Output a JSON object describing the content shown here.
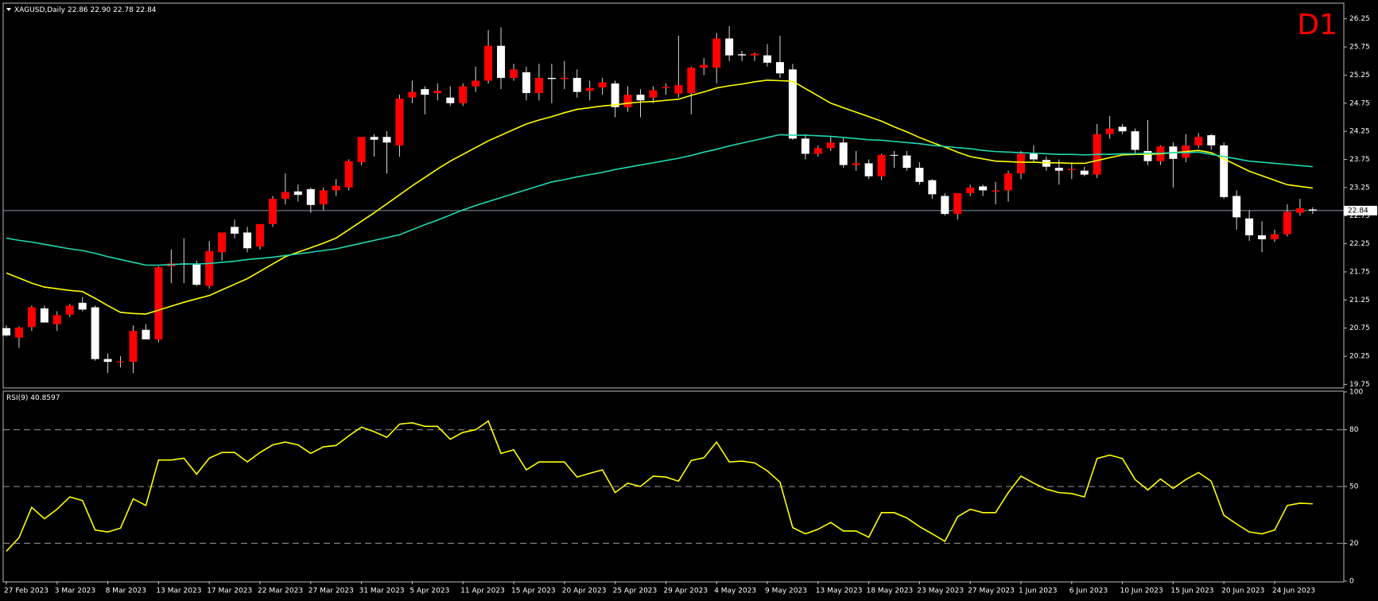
{
  "chart_data": [
    {
      "type": "candlestick",
      "title": "XAGUSD,Daily",
      "subtitle": "22.86 22.90 22.78 22.84",
      "annotation": "D1",
      "categories": [
        "27 Feb 2023",
        null,
        null,
        null,
        "3 Mar 2023",
        null,
        null,
        null,
        "8 Mar 2023",
        null,
        null,
        null,
        "13 Mar 2023",
        null,
        null,
        null,
        "17 Mar 2023",
        null,
        null,
        null,
        "22 Mar 2023",
        null,
        null,
        null,
        "27 Mar 2023",
        null,
        null,
        null,
        "31 Mar 2023",
        null,
        null,
        null,
        "5 Apr 2023",
        null,
        null,
        null,
        "11 Apr 2023",
        null,
        null,
        null,
        "15 Apr 2023",
        null,
        null,
        null,
        "20 Apr 2023",
        null,
        null,
        null,
        "25 Apr 2023",
        null,
        null,
        null,
        "29 Apr 2023",
        null,
        null,
        null,
        "4 May 2023",
        null,
        null,
        null,
        "9 May 2023",
        null,
        null,
        null,
        "13 May 2023",
        null,
        null,
        null,
        "18 May 2023",
        null,
        null,
        null,
        "23 May 2023",
        null,
        null,
        null,
        "27 May 2023",
        null,
        null,
        null,
        "1 Jun 2023",
        null,
        null,
        null,
        "6 Jun 2023",
        null,
        null,
        null,
        "10 Jun 2023",
        null,
        null,
        null,
        "15 Jun 2023",
        null,
        null,
        null,
        "20 Jun 2023",
        null,
        null,
        null,
        "24 Jun 2023",
        null,
        null,
        null
      ],
      "open": [
        20.75,
        20.58,
        20.77,
        21.1,
        20.82,
        20.99,
        21.2,
        21.12,
        20.2,
        20.15,
        20.15,
        20.72,
        20.55,
        21.85,
        21.9,
        21.88,
        21.5,
        22.1,
        22.55,
        22.45,
        22.2,
        22.6,
        23.05,
        23.18,
        23.22,
        22.95,
        23.2,
        23.25,
        23.7,
        24.15,
        24.15,
        24.0,
        24.85,
        25.0,
        24.93,
        24.85,
        24.75,
        25.05,
        25.15,
        25.77,
        25.2,
        25.3,
        24.93,
        25.2,
        25.18,
        25.2,
        24.97,
        25.03,
        25.1,
        24.68,
        24.9,
        24.85,
        25.02,
        24.92,
        24.93,
        25.38,
        25.38,
        25.9,
        25.62,
        25.6,
        25.6,
        25.48,
        25.35,
        24.12,
        23.85,
        23.95,
        24.05,
        23.65,
        23.68,
        23.45,
        23.83,
        23.82,
        23.6,
        23.38,
        23.1,
        22.78,
        23.15,
        23.27,
        23.18,
        23.2,
        23.5,
        23.85,
        23.74,
        23.6,
        23.56,
        23.55,
        23.48,
        24.2,
        24.33,
        24.25,
        23.9,
        23.72,
        23.98,
        23.78,
        24.0,
        24.18,
        24.0,
        23.1,
        22.7,
        22.4,
        22.33,
        22.42,
        22.8,
        22.86
      ],
      "high": [
        20.8,
        20.78,
        21.15,
        21.15,
        21.05,
        21.18,
        21.3,
        21.15,
        20.3,
        20.25,
        20.8,
        20.82,
        21.85,
        22.15,
        22.35,
        21.95,
        22.3,
        22.45,
        22.68,
        22.55,
        22.6,
        23.1,
        23.5,
        23.3,
        23.25,
        23.25,
        23.4,
        23.75,
        24.15,
        24.2,
        24.25,
        24.9,
        25.15,
        25.05,
        25.1,
        25.05,
        25.1,
        25.4,
        26.05,
        26.1,
        25.45,
        25.4,
        25.45,
        25.45,
        25.5,
        25.35,
        25.15,
        25.2,
        25.15,
        25.05,
        25.0,
        25.05,
        25.1,
        25.95,
        25.4,
        25.55,
        26.0,
        26.12,
        25.68,
        25.65,
        25.8,
        25.95,
        25.45,
        24.2,
        24.0,
        24.15,
        24.15,
        23.9,
        23.75,
        23.85,
        23.9,
        23.9,
        23.7,
        23.4,
        23.15,
        23.15,
        23.3,
        23.3,
        23.35,
        23.55,
        23.9,
        24.0,
        23.8,
        23.75,
        23.7,
        23.62,
        24.38,
        24.52,
        24.38,
        24.3,
        24.45,
        24.0,
        24.05,
        24.2,
        24.22,
        24.2,
        24.05,
        23.2,
        22.85,
        22.65,
        22.5,
        22.95,
        23.05,
        22.9
      ],
      "low": [
        20.6,
        20.4,
        20.7,
        20.9,
        20.7,
        20.95,
        21.05,
        20.17,
        19.95,
        20.05,
        19.95,
        20.55,
        20.5,
        21.55,
        21.55,
        21.5,
        21.45,
        21.95,
        22.35,
        22.1,
        22.15,
        22.55,
        22.95,
        23.0,
        22.8,
        22.85,
        23.1,
        23.2,
        23.65,
        23.8,
        23.5,
        23.8,
        24.75,
        24.55,
        24.8,
        24.7,
        24.7,
        24.95,
        25.1,
        25.0,
        25.15,
        24.8,
        24.8,
        24.75,
        25.0,
        24.85,
        24.8,
        24.9,
        24.5,
        24.6,
        24.5,
        24.75,
        24.9,
        24.85,
        24.55,
        25.25,
        25.1,
        25.5,
        25.5,
        25.5,
        25.4,
        25.2,
        24.1,
        23.75,
        23.8,
        23.9,
        23.6,
        23.55,
        23.4,
        23.38,
        23.6,
        23.55,
        23.3,
        23.05,
        22.75,
        22.68,
        23.1,
        23.1,
        22.95,
        23.0,
        23.4,
        23.7,
        23.55,
        23.3,
        23.4,
        23.45,
        23.42,
        24.12,
        24.2,
        23.85,
        23.65,
        23.65,
        23.25,
        23.7,
        23.95,
        23.92,
        23.05,
        22.5,
        22.3,
        22.1,
        22.28,
        22.38,
        22.75,
        22.78
      ],
      "close": [
        20.62,
        20.76,
        21.12,
        20.85,
        20.98,
        21.15,
        21.08,
        20.2,
        20.15,
        20.16,
        20.7,
        20.55,
        21.83,
        21.9,
        21.88,
        21.52,
        22.12,
        22.45,
        22.43,
        22.17,
        22.6,
        23.05,
        23.17,
        23.12,
        22.94,
        23.2,
        23.28,
        23.72,
        24.15,
        24.1,
        24.05,
        24.83,
        24.95,
        24.9,
        24.97,
        24.75,
        25.05,
        25.15,
        25.77,
        25.2,
        25.35,
        24.93,
        25.2,
        25.18,
        25.2,
        24.95,
        25.02,
        25.12,
        24.68,
        24.9,
        24.8,
        24.98,
        25.04,
        25.07,
        25.38,
        25.43,
        25.9,
        25.6,
        25.6,
        25.63,
        25.47,
        25.28,
        24.12,
        23.85,
        23.95,
        24.05,
        23.65,
        23.68,
        23.45,
        23.83,
        23.82,
        23.6,
        23.35,
        23.13,
        22.78,
        23.15,
        23.25,
        23.2,
        23.2,
        23.5,
        23.85,
        23.75,
        23.62,
        23.55,
        23.58,
        23.48,
        24.2,
        24.3,
        24.25,
        23.92,
        23.72,
        23.98,
        23.76,
        24.0,
        24.15,
        24.0,
        23.08,
        22.72,
        22.4,
        22.33,
        22.42,
        22.82,
        22.88,
        22.84
      ],
      "up_color": "#ff0000",
      "down_color": "#ffffff",
      "wick_color": "#d8d8d8",
      "series": [
        {
          "type": "line",
          "color": "#ffff00",
          "values": [
            21.73,
            21.64,
            21.55,
            21.48,
            21.45,
            21.42,
            21.4,
            21.28,
            21.15,
            21.03,
            21.01,
            21.0,
            21.07,
            21.14,
            21.21,
            21.27,
            21.33,
            21.43,
            21.53,
            21.63,
            21.76,
            21.89,
            22.02,
            22.1,
            22.18,
            22.26,
            22.35,
            22.5,
            22.65,
            22.8,
            22.96,
            23.12,
            23.28,
            23.43,
            23.58,
            23.72,
            23.84,
            23.96,
            24.08,
            24.18,
            24.28,
            24.38,
            24.45,
            24.51,
            24.58,
            24.64,
            24.67,
            24.7,
            24.72,
            24.75,
            24.77,
            24.78,
            24.8,
            24.82,
            24.89,
            24.95,
            25.02,
            25.06,
            25.09,
            25.13,
            25.16,
            25.15,
            25.14,
            25.01,
            24.88,
            24.75,
            24.67,
            24.59,
            24.51,
            24.43,
            24.33,
            24.24,
            24.14,
            24.05,
            23.97,
            23.88,
            23.8,
            23.76,
            23.72,
            23.71,
            23.7,
            23.7,
            23.69,
            23.69,
            23.68,
            23.68,
            23.73,
            23.78,
            23.83,
            23.84,
            23.84,
            23.85,
            23.87,
            23.89,
            23.91,
            23.87,
            23.76,
            23.65,
            23.54,
            23.46,
            23.38,
            23.3,
            23.27,
            23.24
          ]
        },
        {
          "type": "line",
          "color": "#20d8b0",
          "values": [
            22.35,
            22.31,
            22.28,
            22.24,
            22.2,
            22.16,
            22.13,
            22.08,
            22.02,
            21.97,
            21.92,
            21.87,
            21.87,
            21.88,
            21.89,
            21.89,
            21.9,
            21.92,
            21.94,
            21.97,
            21.99,
            22.01,
            22.04,
            22.07,
            22.1,
            22.13,
            22.16,
            22.21,
            22.26,
            22.31,
            22.36,
            22.41,
            22.5,
            22.59,
            22.67,
            22.76,
            22.85,
            22.93,
            23.0,
            23.07,
            23.14,
            23.21,
            23.28,
            23.35,
            23.39,
            23.44,
            23.48,
            23.52,
            23.57,
            23.61,
            23.65,
            23.69,
            23.73,
            23.77,
            23.82,
            23.88,
            23.93,
            23.99,
            24.04,
            24.09,
            24.14,
            24.19,
            24.18,
            24.18,
            24.17,
            24.16,
            24.14,
            24.12,
            24.1,
            24.09,
            24.07,
            24.05,
            24.03,
            24.0,
            23.98,
            23.96,
            23.94,
            23.91,
            23.89,
            23.88,
            23.87,
            23.86,
            23.85,
            23.84,
            23.84,
            23.83,
            23.84,
            23.84,
            23.85,
            23.85,
            23.86,
            23.86,
            23.87,
            23.87,
            23.88,
            23.84,
            23.8,
            23.76,
            23.72,
            23.7,
            23.68,
            23.66,
            23.64,
            23.62
          ]
        }
      ],
      "last_price": 22.84,
      "ylim": [
        19.7,
        26.5
      ],
      "yticks": [
        19.75,
        20.25,
        20.75,
        21.25,
        21.75,
        22.25,
        22.75,
        23.25,
        23.75,
        24.25,
        24.75,
        25.25,
        25.75,
        26.25
      ]
    },
    {
      "type": "line",
      "title": "RSI(9)",
      "color": "#ffff00",
      "values": [
        15.8,
        23,
        39,
        33,
        38,
        44.5,
        42.6,
        27,
        26,
        28,
        43.5,
        40,
        64,
        64,
        65,
        56.5,
        65,
        68,
        68,
        63,
        68,
        72,
        73.5,
        72,
        67.5,
        71,
        71.7,
        76.8,
        81.4,
        79,
        76,
        83,
        83.7,
        81.8,
        81.8,
        75,
        78.6,
        80,
        84.6,
        67.5,
        69.4,
        58.8,
        63,
        63,
        63,
        55,
        57,
        58.8,
        46.8,
        51.8,
        50,
        55.5,
        55,
        52.8,
        63.8,
        65.2,
        73.5,
        63,
        63.4,
        62.5,
        58.3,
        52.3,
        28.3,
        25,
        27.4,
        31,
        26.5,
        26.5,
        23.2,
        36.2,
        36.2,
        33.4,
        28.8,
        25,
        21,
        34,
        38,
        36.2,
        36.2,
        46.8,
        55.5,
        51.8,
        48.6,
        46.8,
        46.3,
        44.5,
        64.8,
        66.6,
        64.8,
        53.7,
        48.2,
        54,
        49,
        53.7,
        57.4,
        52.8,
        34.8,
        30.2,
        26,
        25,
        27,
        40,
        41.2,
        40.8597
      ],
      "ylim": [
        0,
        100
      ],
      "yticks": [
        0,
        20,
        50,
        80,
        100
      ],
      "grid": true
    }
  ]
}
